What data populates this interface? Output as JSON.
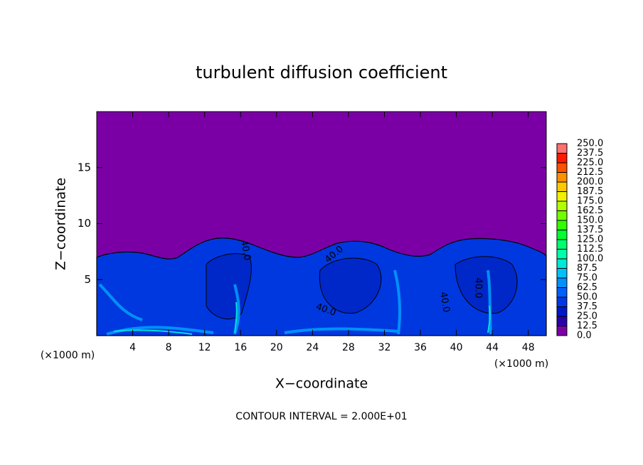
{
  "chart_data": {
    "type": "contour",
    "title": "turbulent diffusion coefficient",
    "xlabel": "X−coordinate",
    "ylabel": "Z−coordinate",
    "x_unit": "(×1000 m)",
    "footnote": "CONTOUR INTERVAL = 2.000E+01",
    "xlim": [
      0,
      50
    ],
    "ylim": [
      0,
      20
    ],
    "xticks": [
      4,
      8,
      12,
      16,
      20,
      24,
      28,
      32,
      36,
      40,
      44,
      48
    ],
    "yticks": [
      5,
      10,
      15
    ],
    "contour_labels": [
      "40.0",
      "40.0",
      "40.0",
      "40.0",
      "40.0"
    ],
    "colorbar": {
      "ticks": [
        {
          "value": 0,
          "label": "0.0"
        },
        {
          "value": 12.5,
          "label": "12.5"
        },
        {
          "value": 25,
          "label": "25.0"
        },
        {
          "value": 37.5,
          "label": "37.5"
        },
        {
          "value": 50,
          "label": "50.0"
        },
        {
          "value": 62.5,
          "label": "62.5"
        },
        {
          "value": 75,
          "label": "75.0"
        },
        {
          "value": 87.5,
          "label": "87.5"
        },
        {
          "value": 100,
          "label": "100.0"
        },
        {
          "value": 112.5,
          "label": "112.5"
        },
        {
          "value": 125,
          "label": "125.0"
        },
        {
          "value": 137.5,
          "label": "137.5"
        },
        {
          "value": 150,
          "label": "150.0"
        },
        {
          "value": 162.5,
          "label": "162.5"
        },
        {
          "value": 175,
          "label": "175.0"
        },
        {
          "value": 187.5,
          "label": "187.5"
        },
        {
          "value": 200,
          "label": "200.0"
        },
        {
          "value": 212.5,
          "label": "212.5"
        },
        {
          "value": 225,
          "label": "225.0"
        },
        {
          "value": 237.5,
          "label": "237.5"
        },
        {
          "value": 250,
          "label": "250.0"
        }
      ],
      "colors": [
        "#7a00a6",
        "#2a00a8",
        "#0018c8",
        "#0038e8",
        "#0060ff",
        "#0090ff",
        "#00c0f8",
        "#00e8d8",
        "#00ffa8",
        "#00ff70",
        "#00ff30",
        "#30ff00",
        "#70ff00",
        "#b0ff00",
        "#f0f000",
        "#ffc800",
        "#ff9000",
        "#ff5000",
        "#ff1800",
        "#ff7070"
      ]
    }
  }
}
